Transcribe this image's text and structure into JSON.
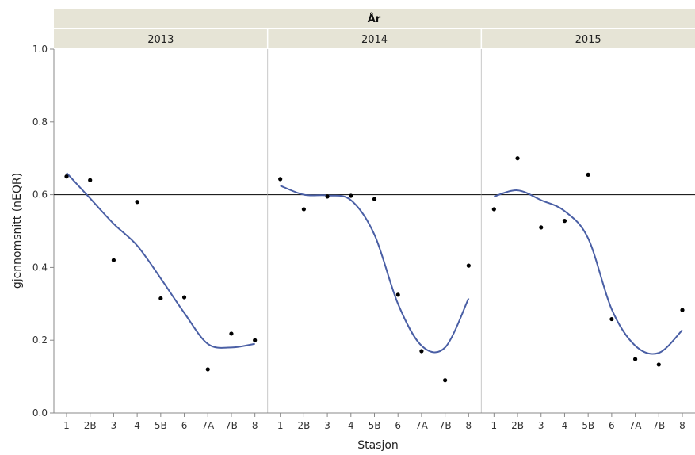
{
  "chart_data": {
    "type": "scatter",
    "group_label": "År",
    "xlabel": "Stasjon",
    "ylabel": "gjennomsnitt (nEQR)",
    "ylim": [
      0,
      1
    ],
    "yticks": [
      "0.0",
      "0.2",
      "0.4",
      "0.6",
      "0.8",
      "1.0"
    ],
    "categories": [
      "1",
      "2B",
      "3",
      "4",
      "5B",
      "6",
      "7A",
      "7B",
      "8"
    ],
    "reference_line": 0.6,
    "grid": false,
    "colors": {
      "points": "#000000",
      "smoother": "#4a5fa5",
      "reference": "#000000",
      "strip_bg": "#e6e4d6",
      "divider": "#c8c8c8"
    },
    "panels": [
      {
        "label": "2013",
        "values": [
          0.65,
          0.64,
          0.42,
          0.58,
          0.315,
          0.318,
          0.12,
          0.218,
          0.2
        ],
        "smoother": [
          0.66,
          0.59,
          0.52,
          0.46,
          0.37,
          0.275,
          0.19,
          0.18,
          0.19
        ]
      },
      {
        "label": "2014",
        "values": [
          0.643,
          0.56,
          0.595,
          0.597,
          0.588,
          0.325,
          0.17,
          0.09,
          0.405
        ],
        "smoother": [
          0.625,
          0.6,
          0.598,
          0.585,
          0.49,
          0.3,
          0.185,
          0.18,
          0.315
        ]
      },
      {
        "label": "2015",
        "values": [
          0.56,
          0.7,
          0.51,
          0.528,
          0.655,
          0.258,
          0.148,
          0.133,
          0.283
        ],
        "smoother": [
          0.595,
          0.612,
          0.585,
          0.555,
          0.48,
          0.285,
          0.185,
          0.165,
          0.228
        ]
      }
    ]
  }
}
